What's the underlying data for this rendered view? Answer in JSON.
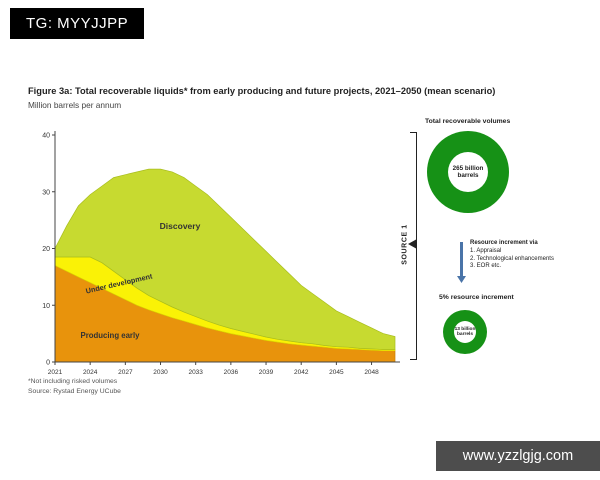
{
  "badge": {
    "label": "TG: MYYJJPP"
  },
  "figure": {
    "title": "Figure 3a: Total recoverable liquids* from early producing and future projects, 2021–2050 (mean scenario)",
    "subtitle": "Million barrels per annum",
    "footnotes": [
      "*Not including risked volumes",
      "Source: Rystad Energy UCube"
    ]
  },
  "source_label": "SOURCE 1",
  "side_panel": {
    "heading": "Total recoverable volumes",
    "big_donut": {
      "line1": "265 billion",
      "line2": "barrels",
      "color": "#169116"
    },
    "increment_title": "Resource increment via",
    "increment_items": [
      "1.  Appraisal",
      "2.  Technological enhancements",
      "3.  EOR etc."
    ],
    "arrow_color": "#4a74a8",
    "increment_result": "5% resource increment",
    "small_donut": {
      "line1": "13 billion",
      "line2": "barrels",
      "color": "#169116"
    }
  },
  "watermark": {
    "label": "www.yzzlgjg.com"
  },
  "chart_data": {
    "type": "area",
    "stacked": true,
    "title": "Figure 3a: Total recoverable liquids* from early producing and future projects, 2021–2050 (mean scenario)",
    "ylabel": "Million barrels per annum",
    "ylim": [
      0,
      40
    ],
    "yticks": [
      0,
      10,
      20,
      30,
      40
    ],
    "xticks": [
      2021,
      2024,
      2027,
      2030,
      2033,
      2036,
      2039,
      2042,
      2045,
      2048
    ],
    "x": [
      2021,
      2022,
      2023,
      2024,
      2025,
      2026,
      2027,
      2028,
      2029,
      2030,
      2031,
      2032,
      2033,
      2034,
      2035,
      2036,
      2037,
      2038,
      2039,
      2040,
      2041,
      2042,
      2043,
      2044,
      2045,
      2046,
      2047,
      2048,
      2049,
      2050
    ],
    "series": [
      {
        "name": "Producing early",
        "color": "#E8930C",
        "edge": "#c97f08",
        "values": [
          17,
          16,
          15,
          14,
          13,
          12,
          11,
          10,
          9.2,
          8.5,
          7.8,
          7.2,
          6.6,
          6,
          5.5,
          5,
          4.6,
          4.2,
          3.8,
          3.5,
          3.2,
          3,
          2.8,
          2.6,
          2.4,
          2.3,
          2.2,
          2.1,
          2,
          2
        ]
      },
      {
        "name": "Under development",
        "color": "#FAF206",
        "edge": "#ded600",
        "values": [
          1.5,
          2.5,
          3.5,
          4.5,
          4.5,
          4,
          3.5,
          3,
          2.5,
          2.2,
          1.9,
          1.6,
          1.4,
          1.2,
          1,
          0.9,
          0.8,
          0.7,
          0.6,
          0.5,
          0.5,
          0.4,
          0.4,
          0.3,
          0.3,
          0.3,
          0.2,
          0.2,
          0.2,
          0.2
        ]
      },
      {
        "name": "Discovery",
        "color": "#C7DA30",
        "edge": "#a8bd1e",
        "values": [
          1.5,
          5.5,
          9,
          11,
          13.5,
          16.5,
          18.5,
          20.5,
          22.3,
          23.3,
          23.8,
          23.7,
          23,
          22.3,
          21,
          19.6,
          18.1,
          16.6,
          15.1,
          13.5,
          11.8,
          10.1,
          8.8,
          7.6,
          6.3,
          5.4,
          4.6,
          3.7,
          2.8,
          2.3
        ]
      }
    ]
  }
}
